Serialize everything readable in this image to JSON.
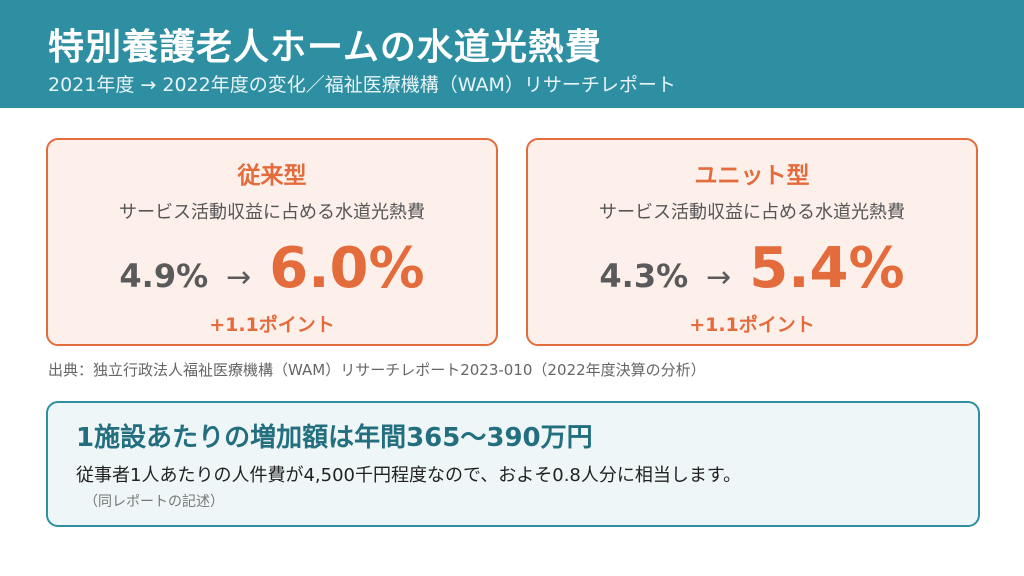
{
  "header": {
    "title": "特別養護老人ホームの水道光熱費",
    "subtitle": "2021年度 → 2022年度の変化／福祉医療機構（WAM）リサーチレポート"
  },
  "cards": [
    {
      "title": "従来型",
      "description": "サービス活動収益に占める水道光熱費",
      "from": "4.9%",
      "arrow": "→",
      "to": "6.0%",
      "delta": "+1.1ポイント"
    },
    {
      "title": "ユニット型",
      "description": "サービス活動収益に占める水道光熱費",
      "from": "4.3%",
      "arrow": "→",
      "to": "5.4%",
      "delta": "+1.1ポイント"
    }
  ],
  "source": "出典：独立行政法人福祉医療機構（WAM）リサーチレポート2023-010（2022年度決算の分析）",
  "summary": {
    "title": "1施設あたりの増加額は年間365〜390万円",
    "text": "従事者1人あたりの人件費が4,500千円程度なので、およそ0.8人分に相当します。",
    "note": "（同レポートの記述）"
  },
  "colors": {
    "header_bg": "#2e8fa3",
    "accent": "#e36b3c",
    "card_bg": "#fdf0ea",
    "summary_bg": "#eef6f7",
    "summary_title": "#236f80"
  }
}
